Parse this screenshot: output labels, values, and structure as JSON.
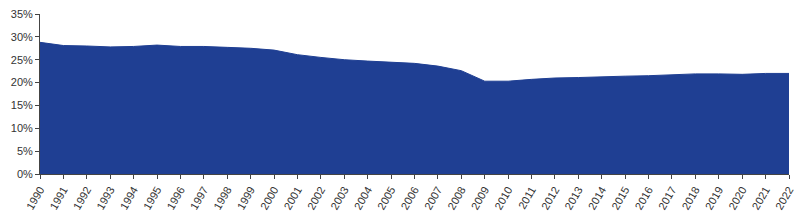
{
  "chart_data": {
    "type": "area",
    "categories": [
      "1990",
      "1991",
      "1992",
      "1993",
      "1994",
      "1995",
      "1996",
      "1997",
      "1998",
      "1999",
      "2000",
      "2001",
      "2002",
      "2003",
      "2004",
      "2005",
      "2006",
      "2007",
      "2008",
      "2009",
      "2010",
      "2011",
      "2012",
      "2013",
      "2014",
      "2015",
      "2016",
      "2017",
      "2018",
      "2019",
      "2020",
      "2021",
      "2022"
    ],
    "values": [
      28.8,
      28.1,
      28.0,
      27.8,
      27.9,
      28.2,
      27.9,
      27.9,
      27.7,
      27.5,
      27.1,
      26.1,
      25.5,
      25.0,
      24.7,
      24.5,
      24.2,
      23.6,
      22.6,
      20.3,
      20.3,
      20.7,
      21.0,
      21.1,
      21.3,
      21.4,
      21.5,
      21.7,
      21.9,
      21.9,
      21.8,
      22.0,
      22.0
    ],
    "color": "#1f3f93",
    "ylim": [
      0,
      35
    ],
    "yticks": [
      {
        "value": 0,
        "label": "0%"
      },
      {
        "value": 5,
        "label": "5%"
      },
      {
        "value": 10,
        "label": "10%"
      },
      {
        "value": 15,
        "label": "15%"
      },
      {
        "value": 20,
        "label": "20%"
      },
      {
        "value": 25,
        "label": "25%"
      },
      {
        "value": 30,
        "label": "30%"
      },
      {
        "value": 35,
        "label": "35%"
      }
    ],
    "grid": false
  }
}
